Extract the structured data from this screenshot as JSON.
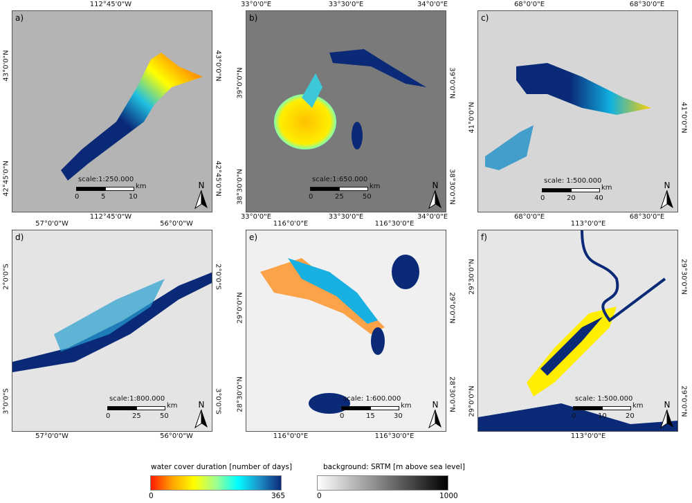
{
  "panels": [
    {
      "label": "a)",
      "top": [
        "112°45'0\"W"
      ],
      "bottom": [
        "112°45'0\"W"
      ],
      "lat": [
        "43°0'0\"N",
        "42°45'0\"N"
      ],
      "scale": "scale:1:250.000",
      "km": [
        "0",
        "5",
        "10"
      ],
      "unit": "km",
      "north": "N"
    },
    {
      "label": "b)",
      "top": [
        "33°0'0\"E",
        "33°30'0\"E",
        "34°0'0\"E"
      ],
      "bottom": [
        "33°0'0\"E",
        "33°30'0\"E",
        "34°0'0\"E"
      ],
      "lat": [
        "39°0'0\"N",
        "38°30'0\"N"
      ],
      "scale": "scale:1:650.000",
      "km": [
        "0",
        "25",
        "50"
      ],
      "unit": "km",
      "north": "N"
    },
    {
      "label": "c)",
      "top": [
        "68°0'0\"E",
        "68°30'0\"E"
      ],
      "bottom": [
        "68°0'0\"E",
        "68°30'0\"E"
      ],
      "lat": [
        "41°0'0\"N"
      ],
      "scale": "scale: 1:500.000",
      "km": [
        "0",
        "20",
        "40"
      ],
      "unit": "km",
      "north": "N"
    },
    {
      "label": "d)",
      "top": [
        "57°0'0\"W",
        "56°0'0\"W"
      ],
      "bottom": [
        "57°0'0\"W",
        "56°0'0\"W"
      ],
      "lat": [
        "2°0'0\"S",
        "3°0'0\"S"
      ],
      "scale": "scale:1:800.000",
      "km": [
        "0",
        "25",
        "50"
      ],
      "unit": "km",
      "north": "N"
    },
    {
      "label": "e)",
      "top": [
        "116°0'0\"E",
        "116°30'0\"E"
      ],
      "bottom": [
        "116°0'0\"E",
        "116°30'0\"E"
      ],
      "lat": [
        "29°0'0\"N",
        "28°30'0\"N"
      ],
      "scale": "scale: 1:600.000",
      "km": [
        "0",
        "15",
        "30"
      ],
      "unit": "km",
      "north": "N"
    },
    {
      "label": "f)",
      "top": [
        "113°0'0\"E"
      ],
      "bottom": [
        "113°0'0\"E"
      ],
      "lat": [
        "29°30'0\"N",
        "29°0'0\"N"
      ],
      "scale": "scale: 1:500.000",
      "km": [
        "0",
        "10",
        "20"
      ],
      "unit": "km",
      "north": "N"
    }
  ],
  "legend": {
    "water": {
      "title": "water cover duration [number of days]",
      "min": "0",
      "max": "365",
      "colors": [
        "#ff1a00",
        "#ffa500",
        "#ffff00",
        "#a0ff90",
        "#00ffff",
        "#1e90c8",
        "#0a2a78"
      ]
    },
    "srtm": {
      "title": "background: SRTM [m above sea level]",
      "min": "0",
      "max": "1000",
      "colors": [
        "#ffffff",
        "#000000"
      ]
    }
  }
}
